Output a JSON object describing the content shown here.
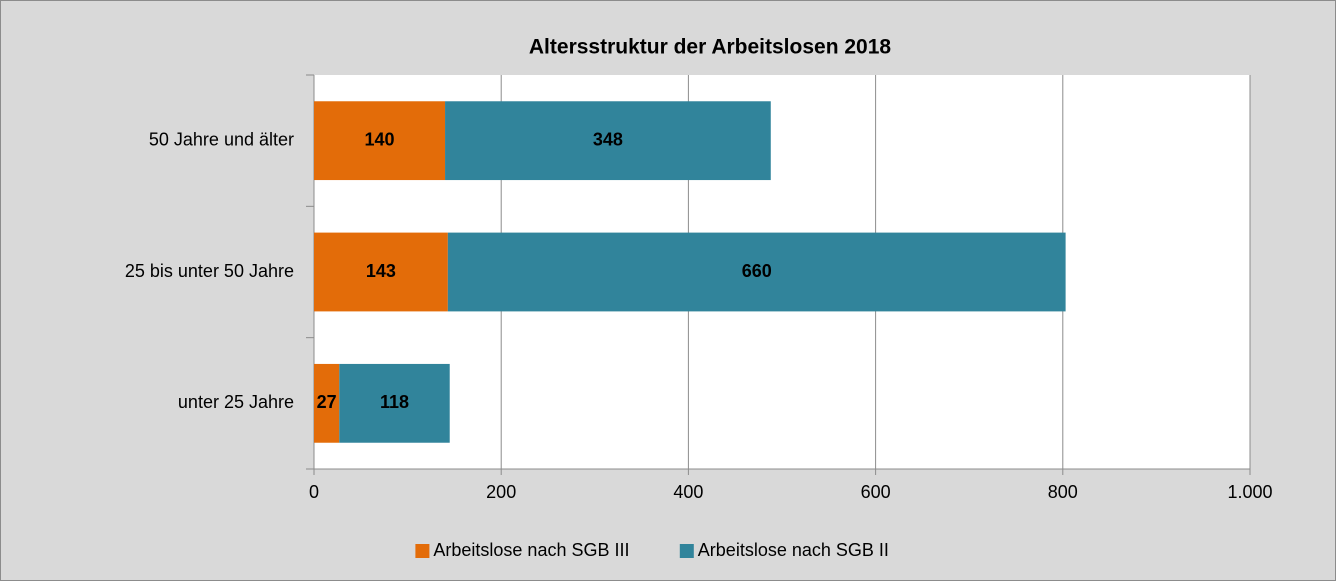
{
  "chart_data": {
    "type": "stacked_bar_horizontal",
    "title": "Altersstruktur der Arbeitslosen 2018",
    "categories": [
      "50 Jahre und älter",
      "25 bis unter 50 Jahre",
      "unter 25 Jahre"
    ],
    "series": [
      {
        "name": "Arbeitslose nach SGB III",
        "color": "#e36c09",
        "values": [
          140,
          143,
          27
        ]
      },
      {
        "name": "Arbeitslose nach SGB II",
        "color": "#31849b",
        "values": [
          348,
          660,
          118
        ]
      }
    ],
    "xlim": [
      0,
      1000
    ],
    "xticks": [
      0,
      200,
      400,
      600,
      800,
      {
        "value": 1000,
        "label": "1.000"
      }
    ],
    "grid": true,
    "legend": "bottom"
  }
}
